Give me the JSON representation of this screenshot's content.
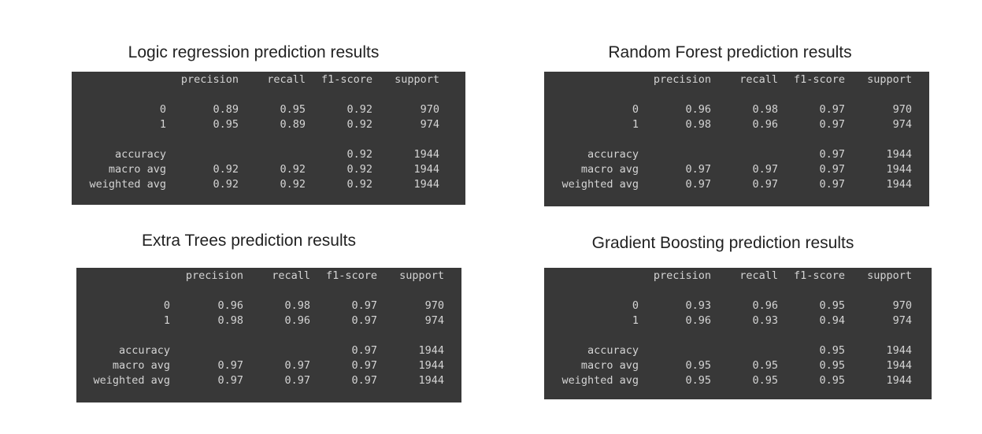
{
  "columns": [
    "precision",
    "recall",
    "f1-score",
    "support"
  ],
  "panels": [
    {
      "title": "Logic regression prediction results",
      "rows": [
        {
          "label": "0",
          "values": [
            "0.89",
            "0.95",
            "0.92",
            "970"
          ]
        },
        {
          "label": "1",
          "values": [
            "0.95",
            "0.89",
            "0.92",
            "974"
          ]
        },
        {
          "label": "accuracy",
          "values": [
            "",
            "",
            "0.92",
            "1944"
          ]
        },
        {
          "label": "macro avg",
          "values": [
            "0.92",
            "0.92",
            "0.92",
            "1944"
          ]
        },
        {
          "label": "weighted avg",
          "values": [
            "0.92",
            "0.92",
            "0.92",
            "1944"
          ]
        }
      ]
    },
    {
      "title": "Random Forest prediction results",
      "rows": [
        {
          "label": "0",
          "values": [
            "0.96",
            "0.98",
            "0.97",
            "970"
          ]
        },
        {
          "label": "1",
          "values": [
            "0.98",
            "0.96",
            "0.97",
            "974"
          ]
        },
        {
          "label": "accuracy",
          "values": [
            "",
            "",
            "0.97",
            "1944"
          ]
        },
        {
          "label": "macro avg",
          "values": [
            "0.97",
            "0.97",
            "0.97",
            "1944"
          ]
        },
        {
          "label": "weighted avg",
          "values": [
            "0.97",
            "0.97",
            "0.97",
            "1944"
          ]
        }
      ]
    },
    {
      "title": "Extra Trees prediction results",
      "rows": [
        {
          "label": "0",
          "values": [
            "0.96",
            "0.98",
            "0.97",
            "970"
          ]
        },
        {
          "label": "1",
          "values": [
            "0.98",
            "0.96",
            "0.97",
            "974"
          ]
        },
        {
          "label": "accuracy",
          "values": [
            "",
            "",
            "0.97",
            "1944"
          ]
        },
        {
          "label": "macro avg",
          "values": [
            "0.97",
            "0.97",
            "0.97",
            "1944"
          ]
        },
        {
          "label": "weighted avg",
          "values": [
            "0.97",
            "0.97",
            "0.97",
            "1944"
          ]
        }
      ]
    },
    {
      "title": "Gradient Boosting prediction results",
      "rows": [
        {
          "label": "0",
          "values": [
            "0.93",
            "0.96",
            "0.95",
            "970"
          ]
        },
        {
          "label": "1",
          "values": [
            "0.96",
            "0.93",
            "0.94",
            "974"
          ]
        },
        {
          "label": "accuracy",
          "values": [
            "",
            "",
            "0.95",
            "1944"
          ]
        },
        {
          "label": "macro avg",
          "values": [
            "0.95",
            "0.95",
            "0.95",
            "1944"
          ]
        },
        {
          "label": "weighted avg",
          "values": [
            "0.95",
            "0.95",
            "0.95",
            "1944"
          ]
        }
      ]
    }
  ]
}
